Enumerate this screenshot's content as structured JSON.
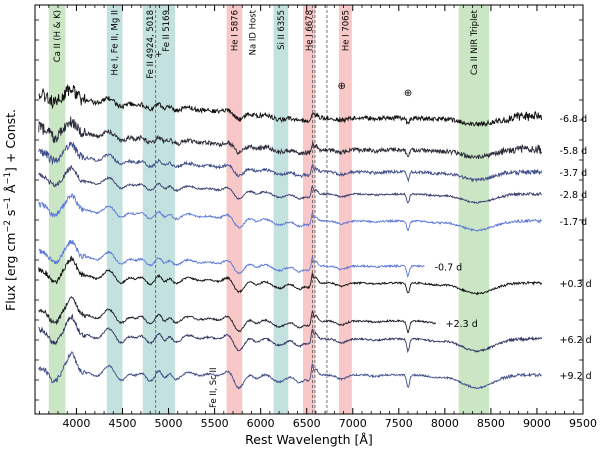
{
  "chart_data": {
    "type": "line",
    "title": "",
    "xlabel": "Rest Wavelength [Å]",
    "ylabel_parts": {
      "pre": "Flux [erg cm",
      "sup1": "−2",
      "mid1": " s",
      "sup2": "−1",
      "mid2": " Å",
      "sup3": "−1",
      "post": "] + Const."
    },
    "xlim": [
      3550,
      9500
    ],
    "x_ticks": [
      4000,
      4500,
      5000,
      5500,
      6000,
      6500,
      7000,
      7500,
      8000,
      8500,
      9000,
      9500
    ],
    "bands": [
      {
        "label": "Ca II (H & K)",
        "x0": 3700,
        "x1": 3880,
        "color": "#c5e3bf"
      },
      {
        "label": "He I, Fe II, Mg II",
        "x0": 4330,
        "x1": 4500,
        "color": "#bddfdc"
      },
      {
        "label": "Fe II 4924, 5018",
        "x0": 4720,
        "x1": 4880,
        "color": "#bddfdc"
      },
      {
        "label": "+",
        "x0": 4880,
        "x1": 4880,
        "color": "#bddfdc"
      },
      {
        "label": "Fe II 5169",
        "x0": 4880,
        "x1": 5070,
        "color": "#bddfdc"
      },
      {
        "label": "He I 5876",
        "x0": 5630,
        "x1": 5800,
        "color": "#f7c1c1"
      },
      {
        "label": "Si II 6355",
        "x0": 6140,
        "x1": 6300,
        "color": "#bddfdc"
      },
      {
        "label": "He I 6678",
        "x0": 6460,
        "x1": 6590,
        "color": "#f7c1c1"
      },
      {
        "label": "He I 7065",
        "x0": 6850,
        "x1": 6990,
        "color": "#f7c1c1"
      },
      {
        "label": "Ca II NIR Triplet",
        "x0": 8150,
        "x1": 8480,
        "color": "#c5e3bf"
      }
    ],
    "annotations": [
      {
        "text": "Na ID Host",
        "x": 5910
      },
      {
        "text": "Fe II, Sc II",
        "x": 5480
      },
      {
        "text": "⊕",
        "x": 6880
      },
      {
        "text": "⊕",
        "x": 7600
      }
    ],
    "ref_lines": [
      4860,
      6563,
      6590,
      6720
    ],
    "series": [
      {
        "name": "-6.8 d",
        "color": "#111111",
        "end": 9050
      },
      {
        "name": "-5.8 d",
        "color": "#2a2a38",
        "end": 9050
      },
      {
        "name": "-3.7 d",
        "color": "#3f4d8a",
        "end": 9050
      },
      {
        "name": "-2.8 d",
        "color": "#3a3f6e",
        "end": 9050
      },
      {
        "name": "-1.7 d",
        "color": "#5c78d8",
        "end": 9050
      },
      {
        "name": "-0.7 d",
        "color": "#5c78d8",
        "end": 7780
      },
      {
        "name": "+0.3 d",
        "color": "#111111",
        "end": 9050
      },
      {
        "name": "+2.3 d",
        "color": "#1e1e2a",
        "end": 7900
      },
      {
        "name": "+6.2 d",
        "color": "#2f3460",
        "end": 9050
      },
      {
        "name": "+9.2 d",
        "color": "#3f4d8a",
        "end": 9050
      }
    ]
  }
}
